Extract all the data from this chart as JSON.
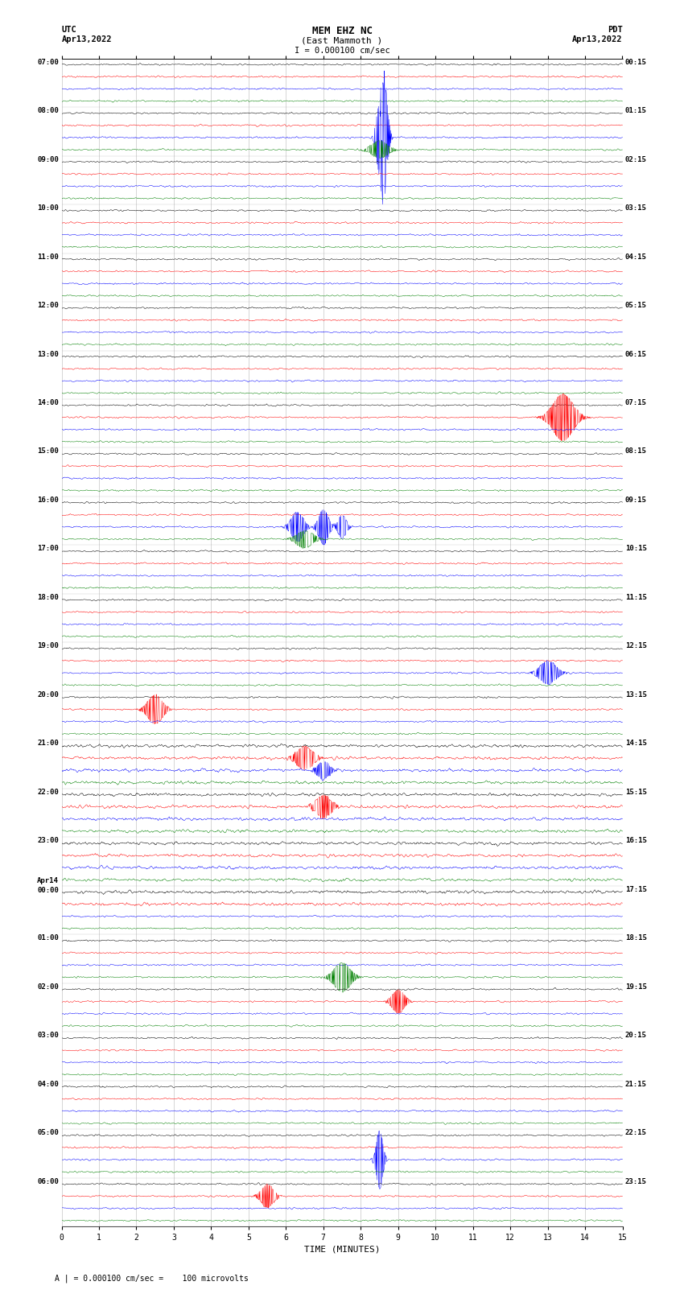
{
  "title_line1": "MEM EHZ NC",
  "title_line2": "(East Mammoth )",
  "title_line3": "I = 0.000100 cm/sec",
  "label_left_top1": "UTC",
  "label_left_top2": "Apr13,2022",
  "label_right_top1": "PDT",
  "label_right_top2": "Apr13,2022",
  "xlabel": "TIME (MINUTES)",
  "bottom_note": "A | = 0.000100 cm/sec =    100 microvolts",
  "colors": [
    "black",
    "red",
    "blue",
    "green"
  ],
  "num_trace_groups": 24,
  "traces_per_group": 4,
  "minutes_per_row": 15,
  "fig_width": 8.5,
  "fig_height": 16.13,
  "bg_color": "white",
  "grid_color": "#999999",
  "utc_labels": [
    "07:00",
    "08:00",
    "09:00",
    "10:00",
    "11:00",
    "12:00",
    "13:00",
    "14:00",
    "15:00",
    "16:00",
    "17:00",
    "18:00",
    "19:00",
    "20:00",
    "21:00",
    "22:00",
    "23:00",
    "Apr14\n00:00",
    "01:00",
    "02:00",
    "03:00",
    "04:00",
    "05:00",
    "06:00"
  ],
  "pdt_labels": [
    "00:15",
    "01:15",
    "02:15",
    "03:15",
    "04:15",
    "05:15",
    "06:15",
    "07:15",
    "08:15",
    "09:15",
    "10:15",
    "11:15",
    "12:15",
    "13:15",
    "14:15",
    "15:15",
    "16:15",
    "17:15",
    "18:15",
    "19:15",
    "20:15",
    "21:15",
    "22:15",
    "23:15"
  ],
  "seed": 42,
  "amplitude": 0.03,
  "lw": 0.35
}
